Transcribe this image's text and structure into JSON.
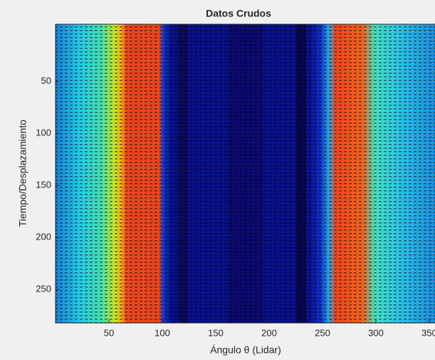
{
  "chart_data": {
    "type": "image",
    "title": "Datos Crudos",
    "xlabel": "Ángulo θ (Lidar)",
    "ylabel": "Tiempo/Desplazamiento",
    "xlim": [
      0,
      360
    ],
    "ylim": [
      -5,
      282
    ],
    "y_reversed": true,
    "xticks": [
      50,
      100,
      150,
      200,
      250,
      300,
      350
    ],
    "yticks": [
      50,
      100,
      150,
      200,
      250
    ]
  }
}
